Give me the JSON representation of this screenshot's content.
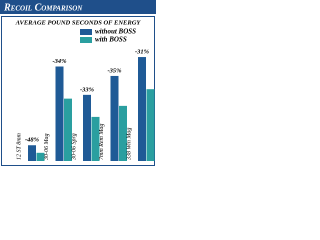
{
  "chart_data": {
    "type": "bar",
    "title": "Recoil Comparison",
    "subtitle": "AVERAGE POUND SECONDS OF ENERGY",
    "categories": [
      "12 ST 8mm",
      "30-06 Mag",
      "30-06 Sprg",
      "7mm Rem Mag",
      "338 Win Mag"
    ],
    "series": [
      {
        "name": "without BOSS",
        "color": "#1f5a96",
        "values": [
          5,
          30,
          21,
          27,
          33
        ]
      },
      {
        "name": "with BOSS",
        "color": "#2a9fa0",
        "values": [
          2.6,
          19.8,
          14,
          17.5,
          22.8
        ]
      }
    ],
    "annotations": [
      "-48%",
      "-34%",
      "-33%",
      "-35%",
      "-31%"
    ]
  }
}
